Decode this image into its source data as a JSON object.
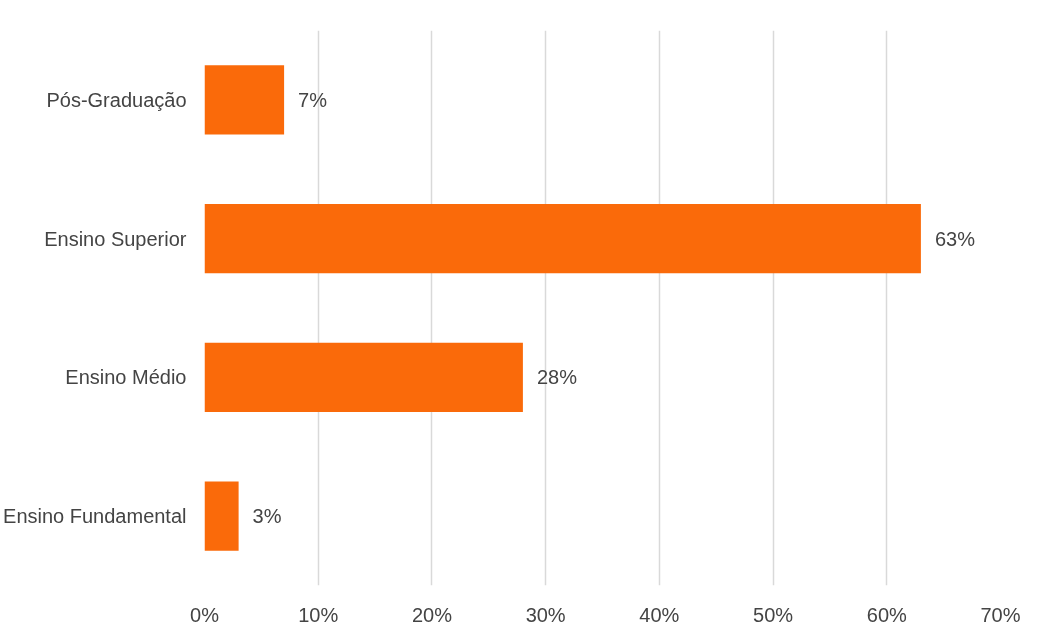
{
  "chart_data": {
    "type": "bar",
    "orientation": "horizontal",
    "categories": [
      "Pós-Graduação",
      "Ensino Superior",
      "Ensino Médio",
      "Ensino Fundamental"
    ],
    "values": [
      7,
      63,
      28,
      3
    ],
    "value_labels": [
      "7%",
      "63%",
      "28%",
      "3%"
    ],
    "color": "#fa6a0a",
    "xlim": [
      0,
      70
    ],
    "xticks": [
      {
        "value": 0,
        "label": "0%"
      },
      {
        "value": 10,
        "label": "10%"
      },
      {
        "value": 20,
        "label": "20%"
      },
      {
        "value": 30,
        "label": "30%"
      },
      {
        "value": 40,
        "label": "40%"
      },
      {
        "value": 50,
        "label": "50%"
      },
      {
        "value": 60,
        "label": "60%"
      },
      {
        "value": 70,
        "label": "70%"
      }
    ],
    "grid": "x"
  }
}
